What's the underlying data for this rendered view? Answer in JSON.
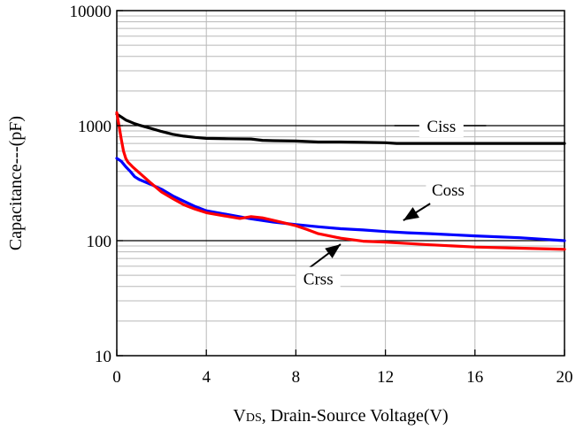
{
  "chart_data": {
    "type": "line",
    "xlabel": "VDS, Drain-Source Voltage(V)",
    "xlabel_parts": {
      "sub": "DS",
      "rest": ", Drain-Source Voltage(V)"
    },
    "ylabel": "Capacitance---(pF)",
    "yscale": "log",
    "xlim": [
      0,
      20
    ],
    "ylim": [
      10,
      10000
    ],
    "x_ticks": [
      0,
      4,
      8,
      12,
      16,
      20
    ],
    "x_tick_labels": [
      "0",
      "4",
      "8",
      "12",
      "16",
      "20"
    ],
    "y_ticks": [
      10,
      100,
      1000,
      10000
    ],
    "y_tick_labels": [
      "10",
      "100",
      "1000",
      "10000"
    ],
    "grid": true,
    "series": [
      {
        "name": "Ciss",
        "color": "#000000",
        "x": [
          0,
          0.2,
          0.4,
          0.6,
          0.8,
          1,
          1.5,
          2,
          2.5,
          3,
          3.5,
          4,
          5,
          6,
          6.5,
          7,
          8,
          9,
          10,
          11,
          12,
          12.5,
          14,
          16,
          18,
          20
        ],
        "y": [
          1260,
          1190,
          1120,
          1080,
          1040,
          1010,
          950,
          890,
          840,
          810,
          790,
          775,
          770,
          765,
          745,
          740,
          735,
          720,
          720,
          715,
          710,
          700,
          700,
          700,
          700,
          700
        ]
      },
      {
        "name": "Coss",
        "color": "#0000ff",
        "x": [
          0,
          0.2,
          0.4,
          0.6,
          0.8,
          1,
          1.5,
          2,
          2.5,
          3,
          3.5,
          4,
          5,
          6,
          7,
          8,
          9,
          10,
          11,
          12,
          13,
          14,
          16,
          18,
          20
        ],
        "y": [
          520,
          490,
          440,
          400,
          360,
          340,
          310,
          280,
          245,
          220,
          198,
          182,
          168,
          155,
          145,
          138,
          132,
          127,
          124,
          120,
          117,
          115,
          110,
          106,
          100
        ]
      },
      {
        "name": "Crss",
        "color": "#ff0000",
        "x": [
          0,
          0.1,
          0.2,
          0.3,
          0.4,
          0.5,
          0.7,
          1,
          1.5,
          2,
          2.5,
          3,
          3.5,
          4,
          5,
          5.5,
          6,
          6.5,
          7,
          8,
          8.5,
          9,
          10,
          11,
          12,
          14,
          16,
          18,
          20
        ],
        "y": [
          1300,
          1000,
          760,
          600,
          520,
          480,
          440,
          390,
          320,
          265,
          232,
          205,
          188,
          175,
          162,
          156,
          162,
          158,
          150,
          135,
          125,
          115,
          105,
          99,
          97,
          92,
          88,
          86,
          84
        ]
      }
    ],
    "annotations": [
      {
        "text": "Ciss",
        "label_at": [
          14.5,
          1000
        ],
        "line_from": [
          12.4,
          1000
        ],
        "line_to": [
          16.5,
          1000
        ]
      },
      {
        "text": "Coss",
        "label_at": [
          14.8,
          280
        ],
        "arrow_from": [
          14.0,
          210
        ],
        "arrow_to": [
          12.8,
          150
        ]
      },
      {
        "text": "Crss",
        "label_at": [
          9.0,
          47
        ],
        "arrow_from": [
          8.6,
          58
        ],
        "arrow_to": [
          10.0,
          93
        ]
      }
    ]
  }
}
